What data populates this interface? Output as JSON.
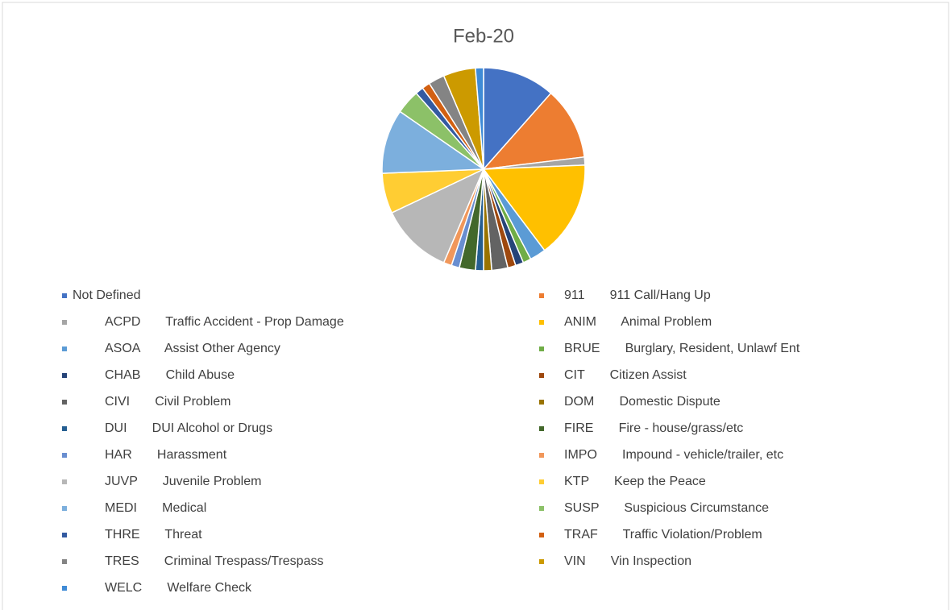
{
  "chart_data": {
    "type": "pie",
    "title": "Feb-20",
    "categories": [
      "Not Defined",
      "911       911 Call/Hang Up",
      "ACPD       Traffic Accident - Prop Damage",
      "ANIM       Animal Problem",
      "ASOA       Assist Other Agency",
      "BRUE       Burglary, Resident, Unlawf Ent",
      "CHAB       Child Abuse",
      "CIT       Citizen Assist",
      "CIVI       Civil Problem",
      "DOM       Domestic Dispute",
      "DUI       DUI Alcohol or Drugs",
      "FIRE       Fire - house/grass/etc",
      "HAR       Harassment",
      "IMPO       Impound - vehicle/trailer, etc",
      "JUVP       Juvenile Problem",
      "KTP       Keep the Peace",
      "MEDI       Medical",
      "SUSP       Suspicious Circumstance",
      "THRE       Threat",
      "TRAF       Traffic Violation/Problem",
      "TRES       Criminal Trespass/Trespass",
      "VIN       Vin Inspection",
      "WELC       Welfare Check"
    ],
    "values": [
      9,
      9,
      1,
      12,
      2,
      1,
      1,
      1,
      2,
      1,
      1,
      2,
      1,
      1,
      9,
      5,
      8,
      3,
      1,
      1,
      2,
      4,
      1
    ],
    "colors": [
      "#4472C4",
      "#ED7D31",
      "#A5A5A5",
      "#FFC000",
      "#5B9BD5",
      "#70AD47",
      "#264478",
      "#9E480E",
      "#636363",
      "#997300",
      "#255E91",
      "#43682B",
      "#698ED0",
      "#F1975A",
      "#B7B7B7",
      "#FFCD33",
      "#7CAFDD",
      "#8CC168",
      "#335AA1",
      "#D26012",
      "#848484",
      "#CC9A00",
      "#3F8BD6"
    ]
  }
}
